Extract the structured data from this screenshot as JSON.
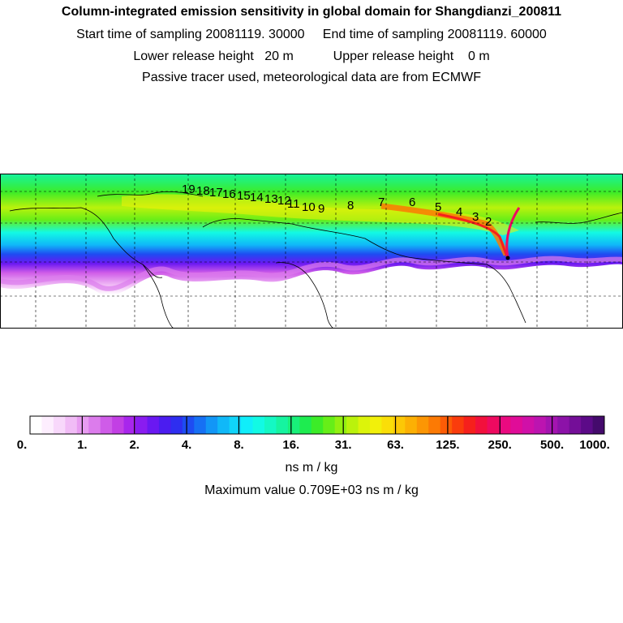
{
  "header": {
    "title": "Column-integrated emission sensitivity in global domain for Shangdianzi_200811",
    "sampling": "Start time of sampling 20081119. 30000     End time of sampling 20081119. 60000",
    "release": "Lower release height   20 m           Upper release height    0 m",
    "note": "Passive tracer used, meteorological data are from ECMWF"
  },
  "colorbar": {
    "tick_labels": [
      "0.",
      "1.",
      "2.",
      "4.",
      "8.",
      "16.",
      "31.",
      "63.",
      "125.",
      "250.",
      "500.",
      "1000."
    ],
    "colors": [
      "#ffffff",
      "#fdeefe",
      "#f8d8fb",
      "#f1bcf6",
      "#e89cf1",
      "#dc7cec",
      "#cf5ce8",
      "#c23fe4",
      "#a826ec",
      "#8a1cf0",
      "#6a18f2",
      "#4b1cf0",
      "#2e2ef0",
      "#1e4cf2",
      "#1670f4",
      "#1296f6",
      "#10b8f8",
      "#10d4fa",
      "#10eefa",
      "#12fae4",
      "#14f8c4",
      "#16f4a0",
      "#18f07a",
      "#1eec50",
      "#3cec28",
      "#66ee18",
      "#92f010",
      "#baf20c",
      "#dcf40a",
      "#f2f00a",
      "#fade08",
      "#fcc806",
      "#fcb004",
      "#fc9604",
      "#fc7a04",
      "#fc5c06",
      "#fa3c0c",
      "#f6201c",
      "#f2103c",
      "#ee0a60",
      "#ea0a80",
      "#e00c98",
      "#d010a8",
      "#bc14b0",
      "#a414b0",
      "#8c12a8",
      "#740e98",
      "#5c0a88",
      "#440a6c"
    ]
  },
  "units_label": "ns m / kg",
  "max_label": "Maximum value  0.709E+03 ns m / kg",
  "trajectory_labels": [
    "19",
    "18",
    "17",
    "16",
    "15",
    "14",
    "13",
    "12",
    "11",
    "10",
    "9",
    "8",
    "7",
    "6",
    "5",
    "4",
    "3",
    "2"
  ]
}
